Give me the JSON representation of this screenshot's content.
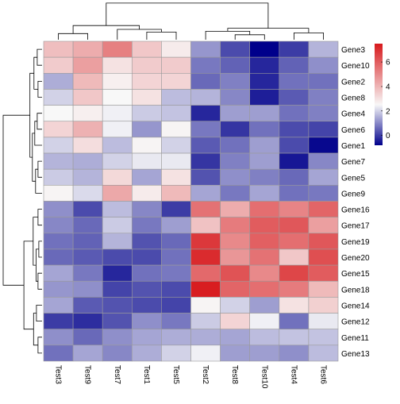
{
  "chart_data": {
    "type": "heatmap",
    "title": "",
    "xlabel": "",
    "ylabel": "",
    "columns": [
      "Test3",
      "Test9",
      "Test7",
      "Test1",
      "Test5",
      "Test2",
      "Test8",
      "Test10",
      "Test4",
      "Test6"
    ],
    "rows": [
      "Gene3",
      "Gene10",
      "Gene2",
      "Gene8",
      "Gene4",
      "Gene6",
      "Gene1",
      "Gene7",
      "Gene5",
      "Gene9",
      "Gene16",
      "Gene17",
      "Gene19",
      "Gene20",
      "Gene15",
      "Gene18",
      "Gene14",
      "Gene12",
      "Gene11",
      "Gene13"
    ],
    "values": [
      [
        3.8,
        4.2,
        5.2,
        3.6,
        2.8,
        1.2,
        0.2,
        -0.8,
        0.0,
        1.6
      ],
      [
        3.5,
        4.5,
        3.0,
        3.5,
        3.5,
        0.8,
        0.5,
        -0.3,
        0.5,
        1.1
      ],
      [
        1.5,
        3.9,
        2.7,
        3.3,
        3.3,
        0.6,
        0.9,
        -0.3,
        0.7,
        0.7
      ],
      [
        2.0,
        3.6,
        2.5,
        3.0,
        1.7,
        1.6,
        1.0,
        -0.4,
        0.4,
        0.9
      ],
      [
        2.5,
        2.7,
        2.4,
        1.9,
        1.8,
        -0.3,
        1.3,
        1.3,
        0.7,
        0.9
      ],
      [
        3.3,
        4.1,
        2.4,
        1.2,
        2.6,
        0.8,
        -0.1,
        0.7,
        0.2,
        0.1
      ],
      [
        2.0,
        3.1,
        1.7,
        2.6,
        2.0,
        0.4,
        0.7,
        1.3,
        0.2,
        -0.7
      ],
      [
        1.6,
        1.5,
        2.0,
        2.3,
        2.3,
        -0.1,
        0.9,
        1.3,
        -0.5,
        1.0
      ],
      [
        1.9,
        1.6,
        3.2,
        1.4,
        3.0,
        0.3,
        1.1,
        0.9,
        0.6,
        1.4
      ],
      [
        2.6,
        2.1,
        4.3,
        2.8,
        3.9,
        1.4,
        0.8,
        1.4,
        0.7,
        0.8
      ],
      [
        1.1,
        0.2,
        1.7,
        1.0,
        0.0,
        5.5,
        4.2,
        5.6,
        5.1,
        5.8
      ],
      [
        1.0,
        0.6,
        1.9,
        0.8,
        1.3,
        3.7,
        5.3,
        6.0,
        6.1,
        4.5
      ],
      [
        0.7,
        0.5,
        1.6,
        0.3,
        0.6,
        6.8,
        5.0,
        5.9,
        5.6,
        6.1
      ],
      [
        0.6,
        0.4,
        0.2,
        0.2,
        0.7,
        7.1,
        4.7,
        5.5,
        3.6,
        6.3
      ],
      [
        1.4,
        0.8,
        -0.3,
        0.7,
        0.8,
        5.7,
        6.2,
        5.0,
        6.5,
        6.0
      ],
      [
        1.2,
        1.1,
        0.1,
        0.3,
        0.2,
        7.4,
        5.8,
        5.6,
        5.3,
        3.9
      ],
      [
        1.4,
        0.4,
        0.3,
        0.2,
        0.1,
        2.6,
        2.0,
        1.3,
        3.0,
        3.4
      ],
      [
        0.0,
        -0.2,
        0.3,
        1.1,
        0.8,
        1.9,
        3.3,
        2.4,
        0.7,
        2.3
      ],
      [
        1.1,
        0.6,
        1.1,
        1.4,
        1.5,
        1.5,
        1.4,
        1.7,
        1.8,
        1.8
      ],
      [
        0.7,
        1.4,
        1.0,
        1.5,
        2.0,
        2.4,
        1.3,
        1.3,
        1.1,
        1.7
      ]
    ],
    "color_scale": {
      "type": "diverging",
      "low_color": "#00008b",
      "mid_color": "#f8f8f8",
      "high_color": "#d7191c",
      "low_value": -0.8,
      "mid_value": 2.5,
      "high_value": 7.5
    },
    "legend": {
      "placement": "right",
      "ticks": [
        0,
        2,
        4,
        6
      ],
      "labels": [
        "0",
        "2",
        "4",
        "6"
      ]
    },
    "grid": true,
    "col_dendrogram": true,
    "row_dendrogram": true
  }
}
